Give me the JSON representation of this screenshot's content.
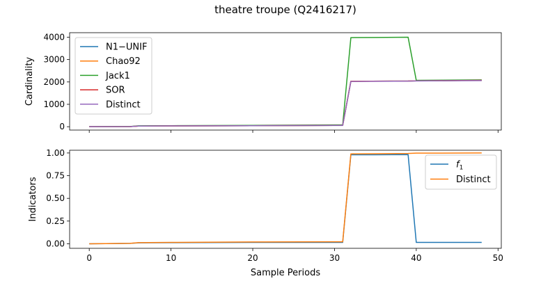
{
  "chart_data": {
    "type": "line",
    "title": "theatre troupe (Q2416217)",
    "xlabel": "Sample Periods",
    "x_ticks": [
      0,
      10,
      20,
      30,
      40,
      50
    ],
    "x_range": [
      -2.4,
      50.4
    ],
    "panels": [
      {
        "id": "top",
        "ylabel": "Cardinality",
        "ylim": [
          -150,
          4200
        ],
        "y_ticks": [
          0,
          1000,
          2000,
          3000,
          4000
        ],
        "legend": "top-left",
        "series": [
          {
            "name": "N1−UNIF",
            "color": "#1f77b4",
            "points": [
              [
                0,
                0
              ],
              [
                5,
                5
              ],
              [
                6,
                30
              ],
              [
                10,
                35
              ],
              [
                20,
                45
              ],
              [
                30,
                60
              ],
              [
                31,
                60
              ],
              [
                32,
                2030
              ],
              [
                39,
                2040
              ],
              [
                40,
                2050
              ],
              [
                48,
                2070
              ]
            ]
          },
          {
            "name": "Chao92",
            "color": "#ff7f0e",
            "points": [
              [
                0,
                0
              ],
              [
                5,
                5
              ],
              [
                6,
                30
              ],
              [
                10,
                35
              ],
              [
                20,
                45
              ],
              [
                30,
                60
              ],
              [
                31,
                60
              ],
              [
                32,
                2030
              ],
              [
                39,
                2040
              ],
              [
                40,
                2050
              ],
              [
                48,
                2070
              ]
            ]
          },
          {
            "name": "Jack1",
            "color": "#2ca02c",
            "points": [
              [
                0,
                0
              ],
              [
                5,
                10
              ],
              [
                6,
                40
              ],
              [
                10,
                45
              ],
              [
                20,
                60
              ],
              [
                30,
                80
              ],
              [
                31,
                80
              ],
              [
                32,
                3980
              ],
              [
                35,
                3985
              ],
              [
                39,
                4000
              ],
              [
                40,
                2070
              ],
              [
                48,
                2090
              ]
            ]
          },
          {
            "name": "SOR",
            "color": "#d62728",
            "points": [
              [
                0,
                0
              ],
              [
                5,
                5
              ],
              [
                6,
                30
              ],
              [
                10,
                35
              ],
              [
                20,
                45
              ],
              [
                30,
                60
              ],
              [
                31,
                60
              ],
              [
                32,
                2030
              ],
              [
                39,
                2040
              ],
              [
                40,
                2050
              ],
              [
                48,
                2070
              ]
            ]
          },
          {
            "name": "Distinct",
            "color": "#9467bd",
            "points": [
              [
                0,
                0
              ],
              [
                5,
                5
              ],
              [
                6,
                30
              ],
              [
                10,
                35
              ],
              [
                20,
                45
              ],
              [
                30,
                55
              ],
              [
                31,
                55
              ],
              [
                32,
                2020
              ],
              [
                39,
                2035
              ],
              [
                40,
                2045
              ],
              [
                48,
                2060
              ]
            ]
          }
        ]
      },
      {
        "id": "bottom",
        "ylabel": "Indicators",
        "ylim": [
          -0.05,
          1.03
        ],
        "y_ticks": [
          0.0,
          0.25,
          0.5,
          0.75,
          1.0
        ],
        "y_tick_labels": [
          "0.00",
          "0.25",
          "0.50",
          "0.75",
          "1.00"
        ],
        "legend": "top-right",
        "series": [
          {
            "name": "f1",
            "label_main": "f",
            "label_sub": "1",
            "color": "#1f77b4",
            "points": [
              [
                0,
                0.0
              ],
              [
                5,
                0.005
              ],
              [
                6,
                0.01
              ],
              [
                10,
                0.012
              ],
              [
                20,
                0.015
              ],
              [
                30,
                0.015
              ],
              [
                31,
                0.015
              ],
              [
                32,
                0.98
              ],
              [
                35,
                0.98
              ],
              [
                39,
                0.982
              ],
              [
                40,
                0.015
              ],
              [
                48,
                0.015
              ]
            ]
          },
          {
            "name": "Distinct",
            "color": "#ff7f0e",
            "points": [
              [
                0,
                0.0
              ],
              [
                5,
                0.005
              ],
              [
                6,
                0.012
              ],
              [
                10,
                0.015
              ],
              [
                20,
                0.02
              ],
              [
                30,
                0.022
              ],
              [
                31,
                0.022
              ],
              [
                32,
                0.99
              ],
              [
                39,
                0.995
              ],
              [
                40,
                0.998
              ],
              [
                48,
                1.0
              ]
            ]
          }
        ]
      }
    ]
  }
}
